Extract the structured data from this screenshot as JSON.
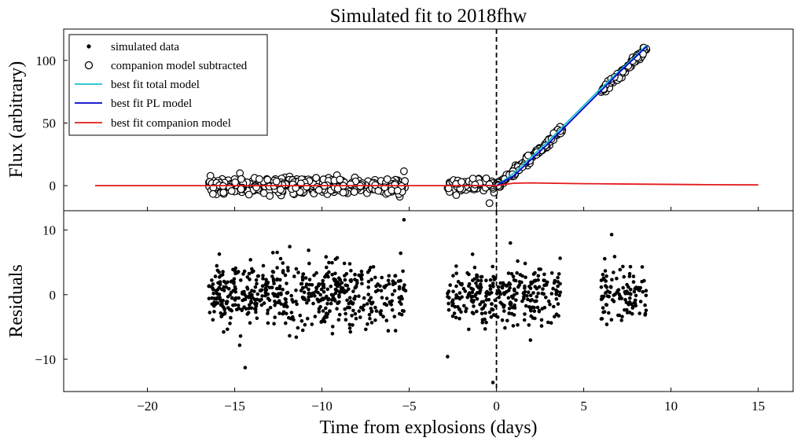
{
  "chart_data": [
    {
      "panel": "top",
      "type": "scatter",
      "title": "Simulated fit to 2018fhw",
      "ylabel": "Flux (arbitrary)",
      "xlim": [
        -24.8,
        17
      ],
      "ylim": [
        -20,
        125
      ],
      "yticks": [
        0,
        50,
        100
      ],
      "ytick_labels": [
        "0",
        "50",
        "100"
      ],
      "vline_x": 0,
      "legend": {
        "position": "upper left",
        "entries": [
          {
            "label": "simulated data",
            "marker": "dot",
            "color": "#000000"
          },
          {
            "label": "companion model subtracted",
            "marker": "open-circle",
            "color": "#000000"
          },
          {
            "label": "best fit total model",
            "marker": "line",
            "color": "#17becf"
          },
          {
            "label": "best fit PL model",
            "marker": "line",
            "color": "#0000cc"
          },
          {
            "label": "best fit companion model",
            "marker": "line",
            "color": "#e41a1c"
          }
        ]
      },
      "series": [
        {
          "name": "companion model subtracted",
          "style": "open-circle",
          "segments": [
            {
              "x_start": -16.5,
              "x_end": -5.2,
              "trend": "constant",
              "level": 0,
              "scatter": 4.2,
              "n": 430
            },
            {
              "x_start": -2.8,
              "x_end": -0.05,
              "trend": "constant",
              "level": 0,
              "scatter": 4.2,
              "n": 90
            },
            {
              "x_start": 0,
              "x_end": 3.8,
              "trend": "powerlaw",
              "n": 150,
              "scatter": 2.5
            },
            {
              "x_start": 6.0,
              "x_end": 8.6,
              "trend": "powerlaw",
              "n": 80,
              "scatter": 2.5
            }
          ],
          "extremes": [
            {
              "x": -5.3,
              "y": 11.5
            },
            {
              "x": -0.4,
              "y": -14
            }
          ]
        },
        {
          "name": "best fit total model",
          "style": "line",
          "color": "#17becf",
          "x": [
            -1.5,
            0,
            1,
            2,
            3,
            4,
            5,
            6,
            7,
            8,
            8.6
          ],
          "y": [
            0,
            0,
            10,
            23,
            36,
            50,
            64,
            78,
            91,
            104,
            112
          ]
        },
        {
          "name": "best fit PL model",
          "style": "line",
          "color": "#0000cc",
          "x": [
            -1.5,
            0,
            1,
            2,
            3,
            4,
            5,
            6,
            7,
            8,
            8.6
          ],
          "y": [
            0,
            0,
            8,
            21,
            34,
            48,
            62,
            76,
            90,
            103,
            111
          ]
        },
        {
          "name": "best fit companion model",
          "style": "line",
          "color": "#e41a1c",
          "x": [
            -23,
            -5,
            -1,
            0,
            0.5,
            1,
            2,
            3,
            5,
            8,
            12,
            15
          ],
          "y": [
            0,
            0,
            0,
            0,
            1,
            2,
            2.2,
            2.0,
            1.6,
            1.2,
            0.8,
            0.6
          ]
        }
      ]
    },
    {
      "panel": "bottom",
      "type": "scatter",
      "xlabel": "Time from explosions (days)",
      "ylabel": "Residuals",
      "xlim": [
        -24.8,
        17
      ],
      "ylim": [
        -15,
        13
      ],
      "xticks": [
        -20,
        -15,
        -10,
        -5,
        0,
        5,
        10,
        15
      ],
      "xtick_labels": [
        "−20",
        "−15",
        "−10",
        "−5",
        "0",
        "5",
        "10",
        "15"
      ],
      "yticks": [
        -10,
        0,
        10
      ],
      "ytick_labels": [
        "−10",
        "0",
        "10"
      ],
      "vline_x": 0,
      "series": [
        {
          "name": "simulated data",
          "style": "dot",
          "segments": [
            {
              "x_start": -16.5,
              "x_end": -5.2,
              "mean": 0,
              "scatter": 4.0,
              "n": 560
            },
            {
              "x_start": -2.8,
              "x_end": 3.7,
              "mean": 0,
              "scatter": 3.8,
              "n": 300
            },
            {
              "x_start": 6.0,
              "x_end": 8.6,
              "mean": 0,
              "scatter": 3.6,
              "n": 110
            }
          ],
          "extremes": [
            {
              "x": -5.3,
              "y": 11.6
            },
            {
              "x": -14.4,
              "y": -11.3
            },
            {
              "x": -2.8,
              "y": -9.6
            },
            {
              "x": -0.2,
              "y": -13.6
            },
            {
              "x": 0.8,
              "y": 8.0
            },
            {
              "x": 6.6,
              "y": 9.3
            }
          ]
        }
      ]
    }
  ]
}
